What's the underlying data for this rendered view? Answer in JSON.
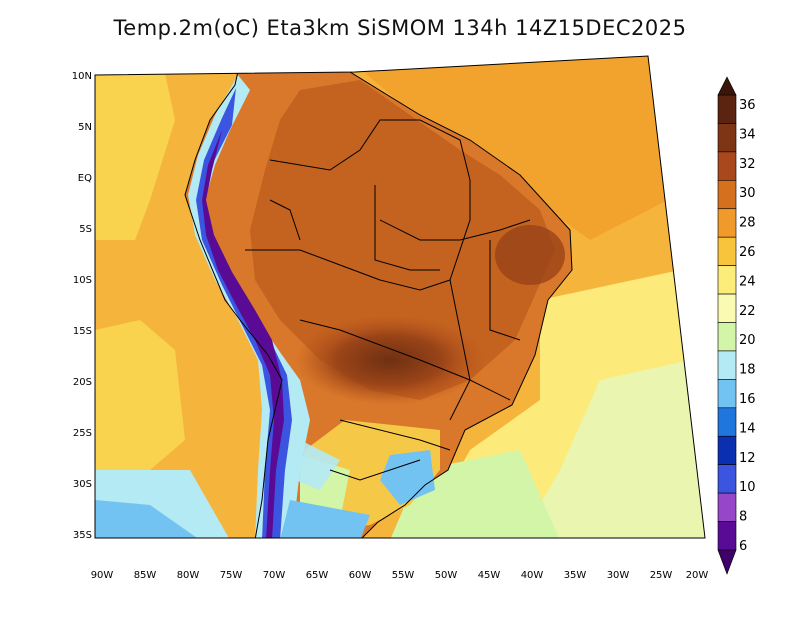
{
  "title": "Temp.2m(oC) Eta3km SiSMOM 134h 14Z15DEC2025",
  "map": {
    "lat_labels": [
      "10N",
      "5N",
      "EQ",
      "5S",
      "10S",
      "15S",
      "20S",
      "25S",
      "30S",
      "35S"
    ],
    "lon_labels": [
      "90W",
      "85W",
      "80W",
      "75W",
      "70W",
      "65W",
      "60W",
      "55W",
      "50W",
      "45W",
      "40W",
      "35W",
      "30W",
      "25W",
      "20W"
    ]
  },
  "colorbar": {
    "labels": [
      "36",
      "34",
      "32",
      "30",
      "28",
      "26",
      "24",
      "22",
      "20",
      "18",
      "16",
      "14",
      "12",
      "10",
      "8",
      "6"
    ],
    "colors": [
      "#5a2410",
      "#7d3515",
      "#a9481c",
      "#d5701f",
      "#f09a2b",
      "#f8c43c",
      "#fcec79",
      "#fafab2",
      "#d2f5a8",
      "#b4eaf4",
      "#72c3f2",
      "#1f76dc",
      "#0a2fb0",
      "#3c55e0",
      "#9646c8",
      "#5a0b96"
    ]
  }
}
